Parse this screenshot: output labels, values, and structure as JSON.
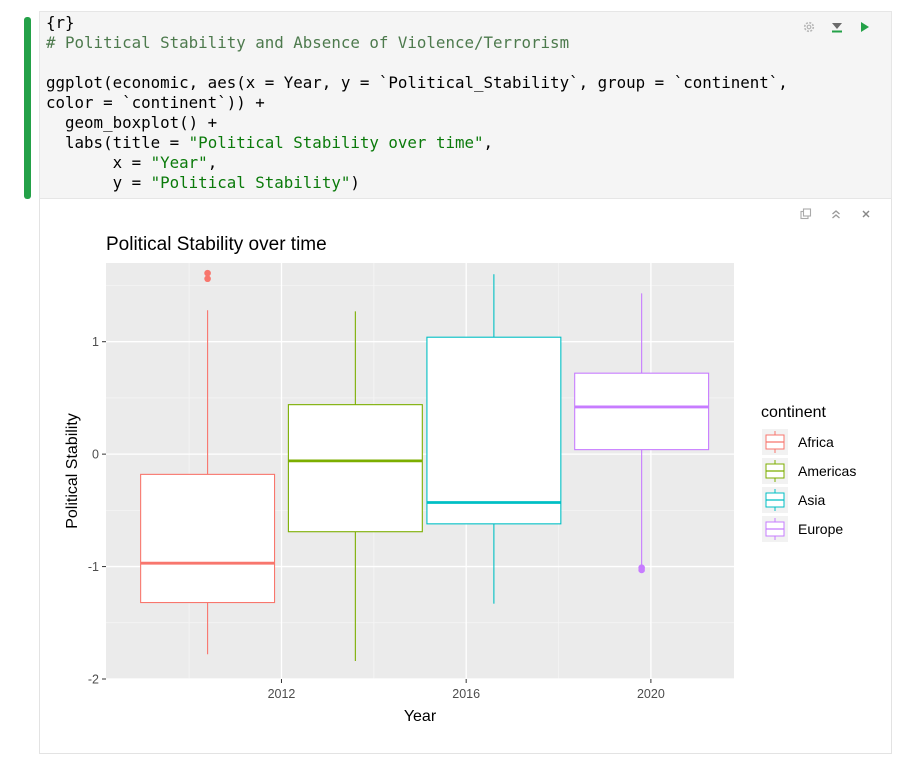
{
  "code": {
    "header": "{r}",
    "comment": "# Political Stability and Absence of Violence/Terrorism",
    "line1a": "ggplot(economic, aes(x = Year, y = `Political_Stability`, group = `continent`,",
    "line2": "color = `continent`)) +",
    "line3": "  geom_boxplot() +",
    "line4a": "  labs(title = ",
    "line4s": "\"Political Stability over time\"",
    "line4b": ",",
    "line5a": "       x = ",
    "line5s": "\"Year\"",
    "line5b": ",",
    "line6a": "       y = ",
    "line6s": "\"Political Stability\"",
    "line6b": ")"
  },
  "chart_data": {
    "type": "boxplot",
    "title": "Political Stability over time",
    "xlabel": "Year",
    "ylabel": "Political Stability",
    "xlim": [
      2008.2,
      2021.8
    ],
    "ylim": [
      -2.0,
      1.7
    ],
    "x_ticks": [
      2012,
      2016,
      2020
    ],
    "y_ticks": [
      -2,
      -1,
      0,
      1
    ],
    "grid": true,
    "legend": {
      "title": "continent",
      "position": "right"
    },
    "series": [
      {
        "name": "Africa",
        "color": "#F8766D",
        "x": 2010.4,
        "width": 2.9,
        "min": -1.78,
        "q1": -1.32,
        "median": -0.97,
        "q3": -0.18,
        "max": 1.28,
        "outliers": [
          1.56,
          1.61
        ]
      },
      {
        "name": "Americas",
        "color": "#7CAE00",
        "x": 2013.6,
        "width": 2.9,
        "min": -1.84,
        "q1": -0.69,
        "median": -0.06,
        "q3": 0.44,
        "max": 1.27,
        "outliers": []
      },
      {
        "name": "Asia",
        "color": "#00BFC4",
        "x": 2016.6,
        "width": 2.9,
        "min": -1.33,
        "q1": -0.62,
        "median": -0.43,
        "q3": 1.04,
        "max": 1.6,
        "outliers": []
      },
      {
        "name": "Europe",
        "color": "#C77CFF",
        "x": 2019.8,
        "width": 2.9,
        "min": -1.0,
        "q1": 0.04,
        "median": 0.42,
        "q3": 0.72,
        "max": 1.43,
        "outliers": [
          -1.01,
          -1.03
        ]
      }
    ]
  }
}
